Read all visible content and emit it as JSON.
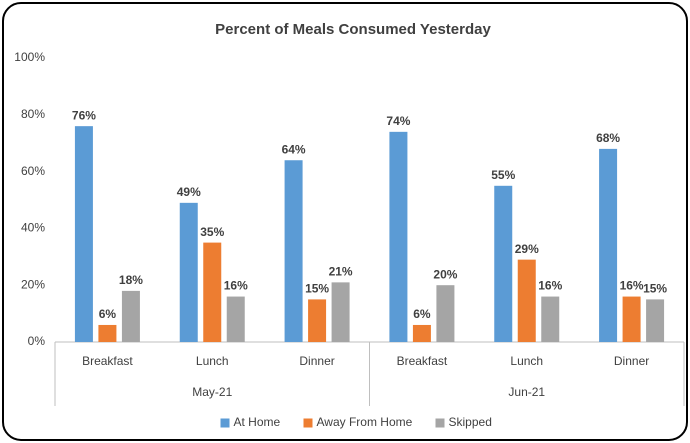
{
  "chart_data": {
    "type": "bar",
    "title": "Percent of Meals Consumed Yesterday",
    "categories": [
      "Breakfast",
      "Lunch",
      "Dinner",
      "Breakfast",
      "Lunch",
      "Dinner"
    ],
    "group_labels": [
      "May-21",
      "Jun-21"
    ],
    "series": [
      {
        "name": "At Home",
        "color": "#5b9bd5",
        "values": [
          76,
          49,
          64,
          74,
          55,
          68
        ],
        "value_labels": [
          "76%",
          "49%",
          "64%",
          "74%",
          "55%",
          "68%"
        ]
      },
      {
        "name": "Away From Home",
        "color": "#ed7d31",
        "values": [
          6,
          35,
          15,
          6,
          29,
          16
        ],
        "value_labels": [
          "6%",
          "35%",
          "15%",
          "6%",
          "29%",
          "16%"
        ]
      },
      {
        "name": "Skipped",
        "color": "#a5a5a5",
        "values": [
          18,
          16,
          21,
          20,
          16,
          15
        ],
        "value_labels": [
          "18%",
          "16%",
          "21%",
          "20%",
          "16%",
          "15%"
        ]
      }
    ],
    "ylim": [
      0,
      100
    ],
    "yticks": [
      {
        "value": 0,
        "label": "0%"
      },
      {
        "value": 20,
        "label": "20%"
      },
      {
        "value": 40,
        "label": "40%"
      },
      {
        "value": 60,
        "label": "60%"
      },
      {
        "value": 80,
        "label": "80%"
      },
      {
        "value": 100,
        "label": "100%"
      }
    ],
    "grid": false,
    "legend": "bottom"
  }
}
